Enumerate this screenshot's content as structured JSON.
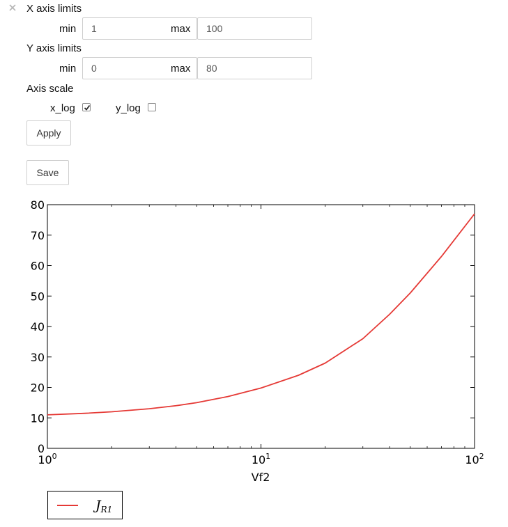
{
  "panel": {
    "close_icon": "close-icon",
    "x_limits": {
      "heading": "X axis limits",
      "min_label": "min",
      "min_value": "1",
      "max_label": "max",
      "max_value": "100"
    },
    "y_limits": {
      "heading": "Y axis limits",
      "min_label": "min",
      "min_value": "0",
      "max_label": "max",
      "max_value": "80"
    },
    "axis_scale": {
      "heading": "Axis scale",
      "x_log_label": "x_log",
      "x_log_checked": true,
      "y_log_label": "y_log",
      "y_log_checked": false
    },
    "apply_label": "Apply",
    "save_label": "Save"
  },
  "chart_data": {
    "type": "line",
    "xlabel": "Vf2",
    "ylabel": "",
    "xscale": "log",
    "xlim": [
      1,
      100
    ],
    "ylim": [
      0,
      80
    ],
    "x_ticks": [
      {
        "base": "10",
        "exp": "0"
      },
      {
        "base": "10",
        "exp": "1"
      },
      {
        "base": "10",
        "exp": "2"
      }
    ],
    "y_ticks": [
      "0",
      "10",
      "20",
      "30",
      "40",
      "50",
      "60",
      "70",
      "80"
    ],
    "series": [
      {
        "name_base": "J",
        "name_sub": "R1",
        "color": "#e53935",
        "x": [
          1,
          1.5,
          2,
          3,
          4,
          5,
          7,
          10,
          15,
          20,
          30,
          40,
          50,
          70,
          100
        ],
        "y": [
          11.0,
          11.5,
          12.0,
          13.0,
          14.0,
          15.0,
          17.0,
          19.8,
          24.0,
          28.0,
          36.0,
          44.0,
          51.0,
          63.0,
          77.0
        ]
      }
    ],
    "legend_position": "below-left",
    "grid": false
  }
}
